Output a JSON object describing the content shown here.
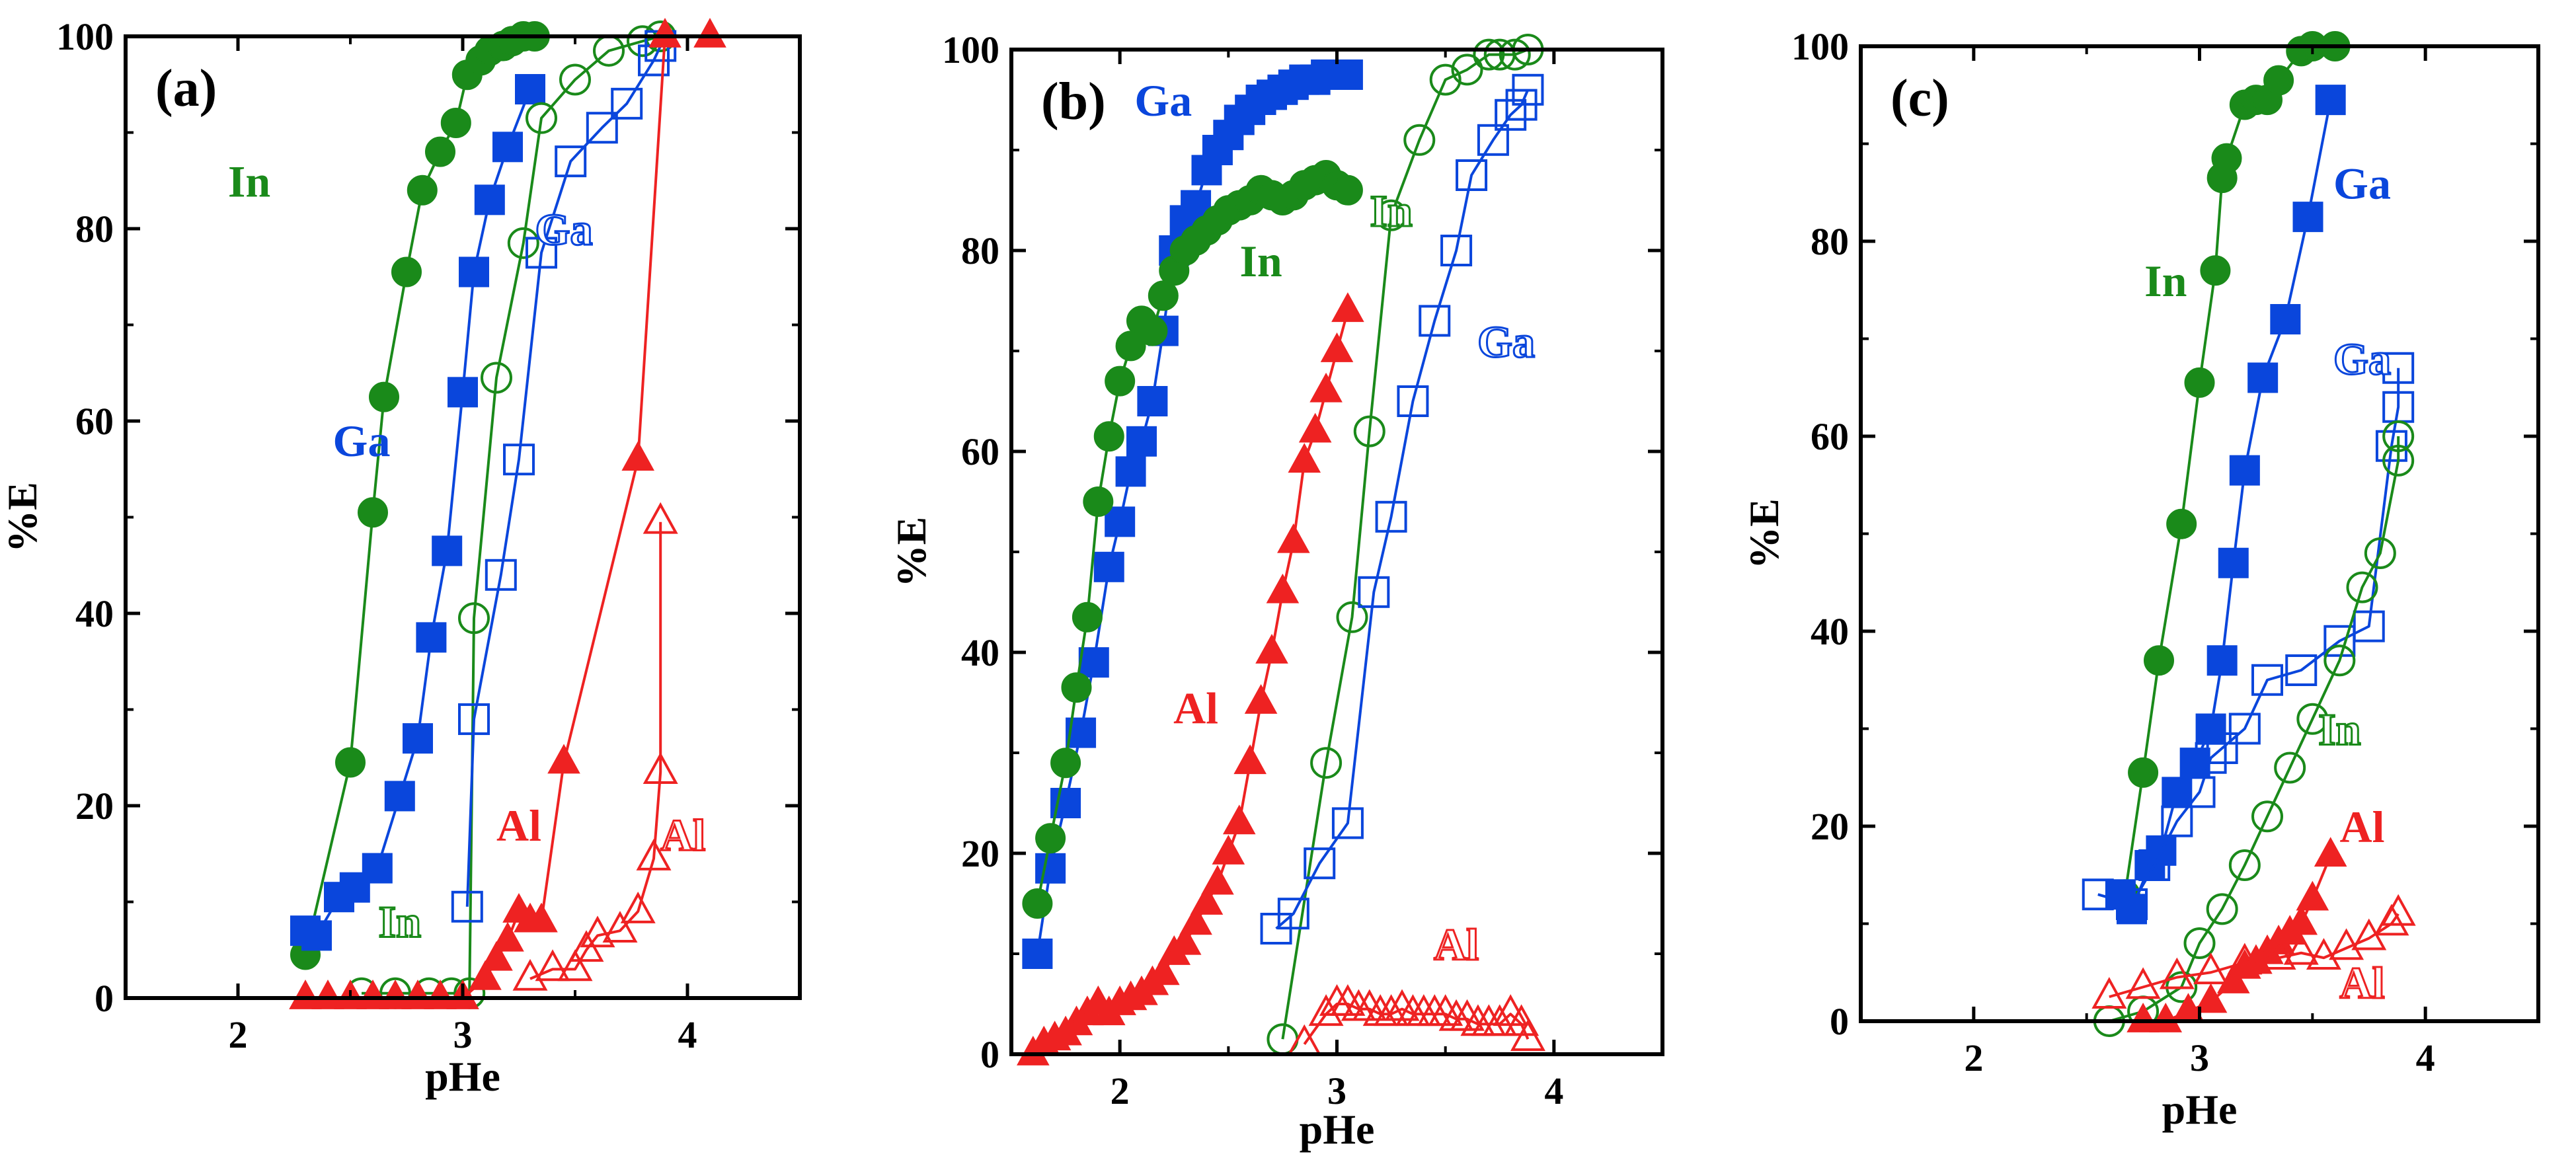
{
  "colors": {
    "In": "#1a8a1a",
    "Ga": "#0a46dc",
    "Al": "#ee2222",
    "axis": "#000000"
  },
  "chart_data": [
    {
      "type": "scatter",
      "panel_label": "(a)",
      "xlabel": "pHe",
      "ylabel": "%E",
      "xlim": [
        1.5,
        4.5
      ],
      "ylim": [
        0,
        100
      ],
      "xticks": [
        2,
        3,
        4
      ],
      "yticks": [
        0,
        20,
        40,
        60,
        80,
        100
      ],
      "annotations": [
        {
          "text": "In",
          "series": "In",
          "style": "filled",
          "x": 2.05,
          "y": 85
        },
        {
          "text": "Ga",
          "series": "Ga",
          "style": "filled",
          "x": 2.55,
          "y": 58
        },
        {
          "text": "Ga",
          "series": "Ga",
          "style": "open",
          "x": 3.45,
          "y": 80
        },
        {
          "text": "In",
          "series": "In",
          "style": "open",
          "x": 2.72,
          "y": 8
        },
        {
          "text": "Al",
          "series": "Al",
          "style": "filled",
          "x": 3.25,
          "y": 18
        },
        {
          "text": "Al",
          "series": "Al",
          "style": "open",
          "x": 3.98,
          "y": 17
        }
      ],
      "series": [
        {
          "name": "In",
          "style": "filled",
          "marker": "circle",
          "x": [
            2.3,
            2.5,
            2.6,
            2.65,
            2.75,
            2.82,
            2.9,
            2.97,
            3.02,
            3.08,
            3.12,
            3.18,
            3.22,
            3.27,
            3.32
          ],
          "y": [
            4.5,
            24.5,
            50.5,
            62.5,
            75.5,
            84,
            88,
            91,
            96,
            97.5,
            98.5,
            99,
            99.5,
            100,
            100
          ]
        },
        {
          "name": "Ga",
          "style": "filled",
          "marker": "square",
          "x": [
            2.3,
            2.35,
            2.45,
            2.52,
            2.62,
            2.72,
            2.8,
            2.86,
            2.93,
            3.0,
            3.05,
            3.12,
            3.2,
            3.3
          ],
          "y": [
            7,
            6.5,
            10.5,
            11.5,
            13.5,
            21,
            27,
            37.5,
            46.5,
            63,
            75.5,
            83,
            88.5,
            94.5
          ]
        },
        {
          "name": "In",
          "style": "open",
          "marker": "circle",
          "x": [
            2.55,
            2.7,
            2.85,
            2.95,
            3.03,
            3.05,
            3.15,
            3.27,
            3.35,
            3.5,
            3.65,
            3.8,
            3.88
          ],
          "y": [
            0.5,
            0.5,
            0.5,
            0.5,
            0.5,
            39.5,
            64.5,
            78.5,
            91.5,
            95.5,
            98.5,
            99.5,
            100
          ]
        },
        {
          "name": "Ga",
          "style": "open",
          "marker": "square",
          "x": [
            3.02,
            3.05,
            3.17,
            3.25,
            3.35,
            3.48,
            3.62,
            3.73,
            3.85,
            3.88
          ],
          "y": [
            9.5,
            29,
            44,
            56,
            77.5,
            87,
            90.5,
            93,
            97.5,
            99
          ]
        },
        {
          "name": "Al",
          "style": "filled",
          "marker": "triangle",
          "x": [
            2.3,
            2.4,
            2.5,
            2.6,
            2.7,
            2.8,
            2.9,
            3.0,
            3.1,
            3.15,
            3.2,
            3.25,
            3.3,
            3.35,
            3.45,
            3.78,
            3.9,
            4.1
          ],
          "y": [
            0,
            0,
            0,
            0,
            0,
            0,
            0,
            0,
            2,
            4,
            6,
            9,
            8,
            8,
            24.5,
            56,
            100,
            100
          ]
        },
        {
          "name": "Al",
          "style": "open",
          "marker": "triangle",
          "x": [
            3.3,
            3.4,
            3.5,
            3.55,
            3.6,
            3.7,
            3.78,
            3.85,
            3.88,
            3.88
          ],
          "y": [
            2,
            3,
            3,
            5,
            6.5,
            7,
            9,
            14.5,
            23.5,
            49.5
          ]
        }
      ]
    },
    {
      "type": "scatter",
      "panel_label": "(b)",
      "xlabel": "pHe",
      "ylabel": "%E",
      "xlim": [
        1.5,
        4.5
      ],
      "ylim": [
        0,
        100
      ],
      "xticks": [
        2,
        3,
        4
      ],
      "yticks": [
        0,
        20,
        40,
        60,
        80,
        100
      ],
      "annotations": [
        {
          "text": "Ga",
          "series": "Ga",
          "style": "filled",
          "x": 2.2,
          "y": 95
        },
        {
          "text": "In",
          "series": "In",
          "style": "filled",
          "x": 2.65,
          "y": 79
        },
        {
          "text": "In",
          "series": "In",
          "style": "open",
          "x": 3.25,
          "y": 84
        },
        {
          "text": "Ga",
          "series": "Ga",
          "style": "open",
          "x": 3.78,
          "y": 71
        },
        {
          "text": "Al",
          "series": "Al",
          "style": "filled",
          "x": 2.35,
          "y": 34.5
        },
        {
          "text": "Al",
          "series": "Al",
          "style": "open",
          "x": 3.55,
          "y": 11
        }
      ],
      "series": [
        {
          "name": "Ga",
          "style": "filled",
          "marker": "square",
          "x": [
            1.62,
            1.68,
            1.75,
            1.82,
            1.88,
            1.95,
            2.0,
            2.05,
            2.1,
            2.15,
            2.2,
            2.25,
            2.3,
            2.35,
            2.4,
            2.45,
            2.5,
            2.55,
            2.6,
            2.65,
            2.7,
            2.75,
            2.8,
            2.85,
            2.9,
            2.95,
            3.0,
            3.05
          ],
          "y": [
            10,
            18.5,
            25,
            32,
            39,
            48.5,
            53,
            58,
            61,
            65,
            72,
            80,
            83,
            84.5,
            88,
            90,
            91.5,
            93,
            94,
            95,
            95.5,
            96,
            96.5,
            97,
            97,
            97.5,
            97.5,
            97.5
          ]
        },
        {
          "name": "In",
          "style": "filled",
          "marker": "circle",
          "x": [
            1.62,
            1.68,
            1.75,
            1.8,
            1.85,
            1.9,
            1.95,
            2.0,
            2.05,
            2.1,
            2.15,
            2.2,
            2.25,
            2.3,
            2.35,
            2.4,
            2.45,
            2.5,
            2.55,
            2.6,
            2.65,
            2.7,
            2.75,
            2.8,
            2.85,
            2.9,
            2.95,
            3.0,
            3.05
          ],
          "y": [
            15,
            21.5,
            29,
            36.5,
            43.5,
            55,
            61.5,
            67,
            70.5,
            73,
            72,
            75.5,
            78,
            80,
            81,
            82,
            83,
            84,
            84.5,
            85,
            86,
            85.5,
            85,
            85.5,
            86.5,
            87,
            87.5,
            86.5,
            86
          ]
        },
        {
          "name": "Al",
          "style": "filled",
          "marker": "triangle",
          "x": [
            1.6,
            1.65,
            1.7,
            1.75,
            1.8,
            1.85,
            1.9,
            1.95,
            2.0,
            2.05,
            2.1,
            2.15,
            2.2,
            2.25,
            2.3,
            2.35,
            2.4,
            2.45,
            2.5,
            2.55,
            2.6,
            2.65,
            2.7,
            2.75,
            2.8,
            2.85,
            2.9,
            2.95,
            3.0,
            3.05
          ],
          "y": [
            0,
            1,
            1.5,
            2,
            3,
            4,
            5,
            4,
            5,
            5.5,
            6,
            7,
            8,
            10,
            11,
            13,
            15,
            17,
            20,
            23,
            29,
            35,
            40,
            46,
            51,
            59,
            62,
            66,
            70,
            74
          ]
        },
        {
          "name": "In",
          "style": "open",
          "marker": "circle",
          "x": [
            2.75,
            2.95,
            3.07,
            3.15,
            3.25,
            3.38,
            3.5,
            3.6,
            3.7,
            3.75,
            3.82,
            3.88
          ],
          "y": [
            1.5,
            29,
            43.5,
            62,
            83.5,
            91,
            97,
            98,
            99.5,
            99.5,
            99.5,
            100
          ]
        },
        {
          "name": "Ga",
          "style": "open",
          "marker": "square",
          "x": [
            2.72,
            2.8,
            2.92,
            3.05,
            3.17,
            3.25,
            3.35,
            3.45,
            3.55,
            3.62,
            3.72,
            3.8,
            3.85,
            3.88
          ],
          "y": [
            12.5,
            14,
            19,
            23,
            46,
            53.5,
            65,
            73,
            80,
            87.5,
            91,
            93.5,
            94.5,
            96
          ]
        },
        {
          "name": "Al",
          "style": "open",
          "marker": "triangle",
          "x": [
            2.85,
            2.95,
            3.0,
            3.05,
            3.1,
            3.15,
            3.2,
            3.25,
            3.3,
            3.35,
            3.4,
            3.45,
            3.5,
            3.55,
            3.6,
            3.65,
            3.7,
            3.75,
            3.8,
            3.85,
            3.88
          ],
          "y": [
            1,
            4,
            5,
            5,
            4.5,
            4.5,
            4,
            4,
            4.5,
            4,
            4,
            4,
            4,
            3.5,
            3.5,
            3,
            3,
            3,
            4,
            3,
            1.5
          ]
        }
      ]
    },
    {
      "type": "scatter",
      "panel_label": "(c)",
      "xlabel": "pHe",
      "ylabel": "%E",
      "xlim": [
        1.5,
        4.5
      ],
      "ylim": [
        0,
        100
      ],
      "xticks": [
        2,
        3,
        4
      ],
      "yticks": [
        0,
        20,
        40,
        60,
        80,
        100
      ],
      "annotations": [
        {
          "text": "In",
          "series": "In",
          "style": "filled",
          "x": 2.85,
          "y": 76
        },
        {
          "text": "Ga",
          "series": "Ga",
          "style": "filled",
          "x": 3.72,
          "y": 86
        },
        {
          "text": "Ga",
          "series": "Ga",
          "style": "open",
          "x": 3.72,
          "y": 68
        },
        {
          "text": "In",
          "series": "In",
          "style": "open",
          "x": 3.62,
          "y": 30
        },
        {
          "text": "Al",
          "series": "Al",
          "style": "filled",
          "x": 3.72,
          "y": 20
        },
        {
          "text": "Al",
          "series": "Al",
          "style": "open",
          "x": 3.72,
          "y": 4
        }
      ],
      "series": [
        {
          "name": "In",
          "style": "filled",
          "marker": "circle",
          "x": [
            2.67,
            2.75,
            2.82,
            2.92,
            3.0,
            3.07,
            3.1,
            3.12,
            3.2,
            3.25,
            3.3,
            3.35,
            3.45,
            3.5,
            3.6
          ],
          "y": [
            13,
            25.5,
            37,
            51,
            65.5,
            77,
            86.5,
            88.5,
            94,
            94.5,
            94.5,
            96.5,
            99.5,
            100,
            100
          ]
        },
        {
          "name": "Ga",
          "style": "filled",
          "marker": "square",
          "x": [
            2.65,
            2.7,
            2.78,
            2.83,
            2.9,
            2.98,
            3.05,
            3.1,
            3.15,
            3.2,
            3.28,
            3.38,
            3.48,
            3.58
          ],
          "y": [
            13,
            11.5,
            16,
            17.5,
            23.5,
            26.5,
            30,
            37,
            47,
            56.5,
            66,
            72,
            82.5,
            94.5
          ]
        },
        {
          "name": "Ga",
          "style": "open",
          "marker": "square",
          "x": [
            2.55,
            2.7,
            2.8,
            2.9,
            3.0,
            3.05,
            3.1,
            3.2,
            3.3,
            3.45,
            3.62,
            3.75,
            3.85,
            3.88,
            3.88
          ],
          "y": [
            13,
            12,
            16,
            20.5,
            23.5,
            27,
            28,
            30,
            35,
            36,
            39,
            40.5,
            59,
            63,
            67
          ]
        },
        {
          "name": "In",
          "style": "open",
          "marker": "circle",
          "x": [
            2.6,
            2.75,
            2.92,
            3.0,
            3.1,
            3.2,
            3.3,
            3.4,
            3.5,
            3.62,
            3.72,
            3.8,
            3.88,
            3.88
          ],
          "y": [
            0,
            1,
            3.5,
            8,
            11.5,
            16,
            21,
            26,
            31,
            37,
            44.5,
            48,
            57.5,
            60
          ]
        },
        {
          "name": "Al",
          "style": "filled",
          "marker": "triangle",
          "x": [
            2.75,
            2.85,
            2.95,
            3.05,
            3.15,
            3.2,
            3.25,
            3.3,
            3.35,
            3.4,
            3.45,
            3.5,
            3.58
          ],
          "y": [
            0,
            0,
            1,
            2,
            4,
            5.5,
            6,
            7,
            8,
            9,
            10,
            12.5,
            17
          ]
        },
        {
          "name": "Al",
          "style": "open",
          "marker": "triangle",
          "x": [
            2.6,
            2.75,
            2.9,
            3.05,
            3.2,
            3.35,
            3.45,
            3.55,
            3.65,
            3.75,
            3.85,
            3.88
          ],
          "y": [
            2.5,
            3.5,
            4.5,
            5,
            6,
            6.5,
            7,
            6.5,
            7.5,
            8.5,
            10,
            11
          ]
        }
      ]
    }
  ]
}
